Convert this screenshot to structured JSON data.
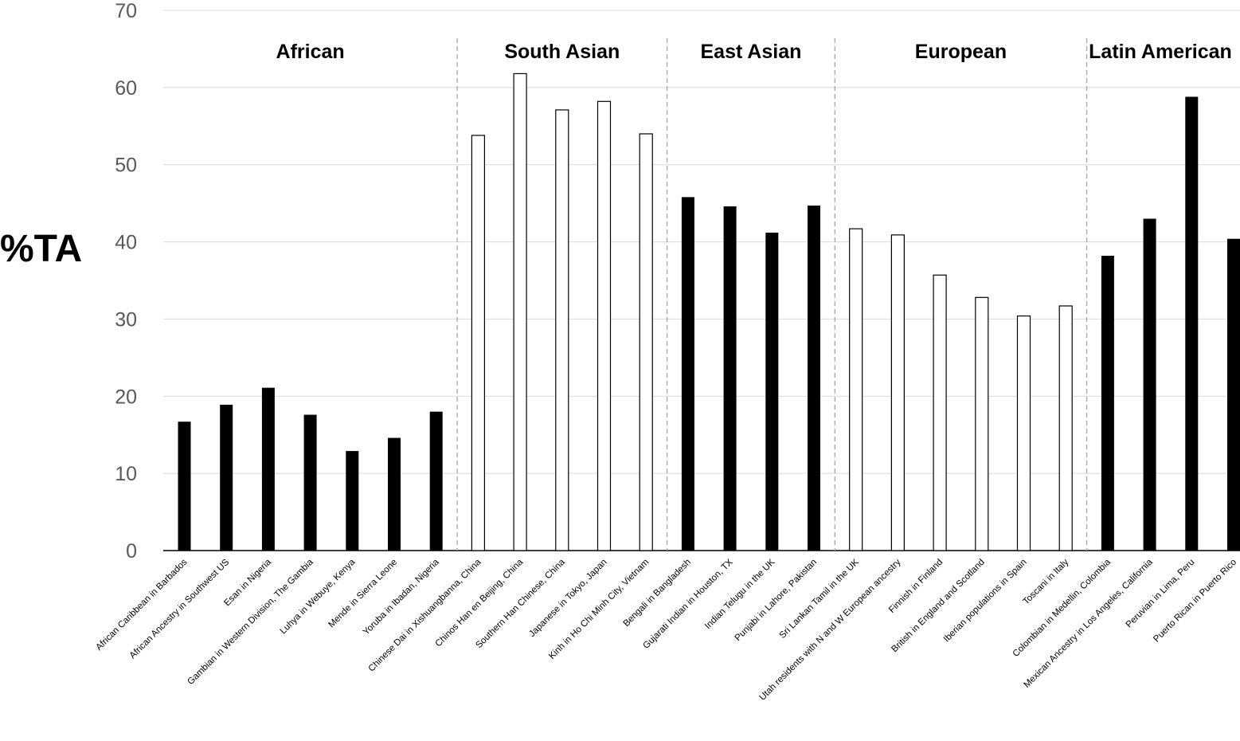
{
  "chart_data": {
    "type": "bar",
    "title": "",
    "xlabel": "",
    "ylabel": "%TA",
    "ylim": [
      0,
      70
    ],
    "yticks": [
      0,
      10,
      20,
      30,
      40,
      50,
      60,
      70
    ],
    "grid": true,
    "colors": {
      "filled": "#000000",
      "hollow": "#ffffff",
      "outline": "#000000",
      "grid": "#d9d9d9",
      "separator": "#a6a6a6"
    },
    "categories": [
      "African Caribbean in Barbados",
      "African Ancestry in Southwest US",
      "Esan in Nigeria",
      "Gambian in Western Division, The Gambia",
      "Luhya in Webuye, Kenya",
      "Mende in Sierra Leone",
      "Yoruba in Ibadan, Nigeria",
      "Chinese Dai in Xishuangbanna, China",
      "Chinos Han en Beijing, China",
      "Southern Han Chinese, China",
      "Japanese in Tokyo, Japan",
      "Kinh in Ho Chi Minh City, Vietnam",
      "Bengali in Bangladesh",
      "Gujarati Indian in Houston, TX",
      "Indian Telugu in the UK",
      "Punjabi in Lahore, Pakistan",
      "Sri Lankan Tamil in the UK",
      "Utah residents with N and W European ancestry",
      "Finnish in Finland",
      "British in England and Scotland",
      "Iberian populations in Spain",
      "Toscani in Italy",
      "Colombian in Medellin, Colombia",
      "Mexican Ancestry in Los Angeles, California",
      "Peruvian in Lima, Peru",
      "Puerto Rican in Puerto Rico"
    ],
    "values": [
      16.7,
      18.9,
      21.1,
      17.6,
      12.9,
      14.6,
      18.0,
      53.8,
      61.8,
      57.1,
      58.2,
      54.0,
      45.8,
      44.6,
      41.2,
      44.7,
      41.7,
      40.9,
      35.7,
      32.8,
      30.4,
      31.7,
      38.2,
      43.0,
      58.8,
      40.4
    ],
    "fill_style": [
      "filled",
      "filled",
      "filled",
      "filled",
      "filled",
      "filled",
      "filled",
      "hollow",
      "hollow",
      "hollow",
      "hollow",
      "hollow",
      "filled",
      "filled",
      "filled",
      "filled",
      "hollow",
      "hollow",
      "hollow",
      "hollow",
      "hollow",
      "hollow",
      "filled",
      "filled",
      "filled",
      "filled"
    ],
    "groups": [
      {
        "label": "African",
        "start": 0,
        "end": 6
      },
      {
        "label": "South Asian",
        "start": 7,
        "end": 11
      },
      {
        "label": "East Asian",
        "start": 12,
        "end": 15
      },
      {
        "label": "European",
        "start": 16,
        "end": 21
      },
      {
        "label": "Latin American",
        "start": 22,
        "end": 25
      }
    ]
  }
}
